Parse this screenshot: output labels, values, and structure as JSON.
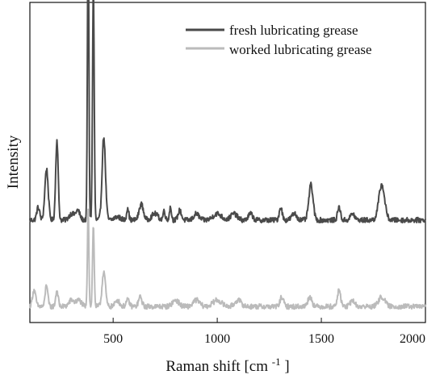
{
  "chart_data": {
    "type": "line",
    "title": "",
    "xlabel": "Raman shift [cm",
    "xlabel_superscript": "-1",
    "xlabel_suffix": "]",
    "ylabel": "Intensity",
    "xlim": [
      100,
      2000
    ],
    "ylim": [
      0,
      100
    ],
    "x_ticks": [
      500,
      1000,
      1500,
      2000
    ],
    "x_tick_labels": [
      "500",
      "1000",
      "1500",
      "2000"
    ],
    "grid": false,
    "legend_position": "top-right",
    "series": [
      {
        "name": "fresh lubricating grease",
        "color": "#4a4a4a",
        "baseline": 32,
        "peaks": [
          [
            140,
            4,
            7
          ],
          [
            180,
            16,
            8
          ],
          [
            230,
            25,
            6
          ],
          [
            300,
            2,
            12
          ],
          [
            330,
            3,
            10
          ],
          [
            380,
            94,
            3.5
          ],
          [
            405,
            73,
            4
          ],
          [
            455,
            26,
            8
          ],
          [
            520,
            1,
            15
          ],
          [
            570,
            4,
            5
          ],
          [
            635,
            5,
            10
          ],
          [
            700,
            2,
            15
          ],
          [
            745,
            3,
            5
          ],
          [
            775,
            4,
            5
          ],
          [
            820,
            3,
            8
          ],
          [
            900,
            2,
            12
          ],
          [
            1000,
            2,
            20
          ],
          [
            1080,
            2,
            15
          ],
          [
            1160,
            2,
            10
          ],
          [
            1305,
            4,
            7
          ],
          [
            1370,
            2,
            12
          ],
          [
            1450,
            11,
            10
          ],
          [
            1585,
            4,
            7
          ],
          [
            1650,
            2,
            10
          ],
          [
            1790,
            11,
            14
          ]
        ]
      },
      {
        "name": "worked lubricating grease",
        "color": "#bbbbbb",
        "baseline": 5,
        "peaks": [
          [
            120,
            5,
            8
          ],
          [
            180,
            7,
            6
          ],
          [
            230,
            5,
            6
          ],
          [
            300,
            2,
            12
          ],
          [
            335,
            2,
            12
          ],
          [
            380,
            31,
            3.5
          ],
          [
            405,
            25,
            4
          ],
          [
            455,
            11,
            8
          ],
          [
            520,
            2,
            10
          ],
          [
            570,
            2,
            8
          ],
          [
            630,
            3,
            8
          ],
          [
            800,
            2,
            15
          ],
          [
            900,
            2,
            15
          ],
          [
            1000,
            2,
            20
          ],
          [
            1100,
            2,
            15
          ],
          [
            1310,
            3,
            8
          ],
          [
            1445,
            3,
            10
          ],
          [
            1585,
            5,
            8
          ],
          [
            1650,
            2,
            10
          ],
          [
            1790,
            3,
            15
          ]
        ]
      }
    ]
  }
}
